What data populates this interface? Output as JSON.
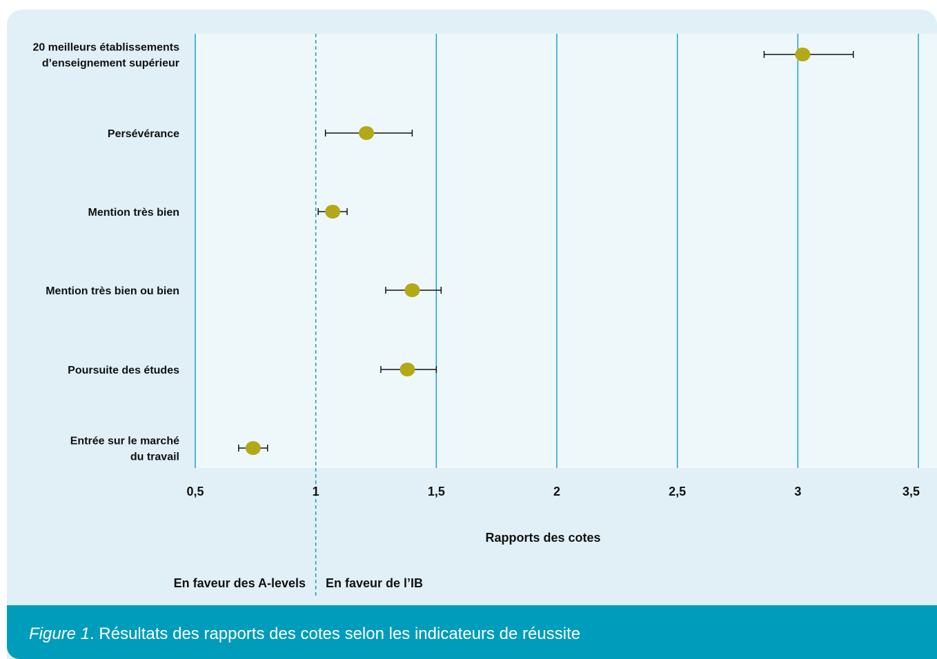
{
  "chart_data": {
    "type": "scatter",
    "subtype": "forest-plot",
    "categories": [
      [
        "20 meilleurs établissements",
        "d’enseignement supérieur"
      ],
      [
        "Persévérance"
      ],
      [
        "Mention très bien"
      ],
      [
        "Mention très bien ou bien"
      ],
      [
        "Poursuite des études"
      ],
      [
        "Entrée sur le marché",
        "du travail"
      ]
    ],
    "points": [
      {
        "value": 3.02,
        "ci_low": 2.86,
        "ci_high": 3.23
      },
      {
        "value": 1.21,
        "ci_low": 1.04,
        "ci_high": 1.4
      },
      {
        "value": 1.07,
        "ci_low": 1.01,
        "ci_high": 1.13
      },
      {
        "value": 1.4,
        "ci_low": 1.29,
        "ci_high": 1.52
      },
      {
        "value": 1.38,
        "ci_low": 1.27,
        "ci_high": 1.5
      },
      {
        "value": 0.74,
        "ci_low": 0.68,
        "ci_high": 0.8
      }
    ],
    "x_ticks": [
      "0,5",
      "1",
      "1,5",
      "2",
      "2,5",
      "3",
      "3,5"
    ],
    "x_tick_values": [
      0.5,
      1,
      1.5,
      2,
      2.5,
      3,
      3.5
    ],
    "xlim": [
      0.5,
      3.5
    ],
    "reference_line": 1,
    "xlabel": "Rapports des cotes",
    "left_annotation": "En faveur des A-levels",
    "right_annotation": "En faveur de l’IB",
    "grid": true,
    "colors": {
      "background": "#e0f0f6",
      "plot_area": "#eef7fa",
      "gridline": "#1aa3c8",
      "marker": "#b3a917",
      "caption_bar": "#009cbc"
    }
  },
  "caption": {
    "figure_label": "Figure 1",
    "text": ". Résultats des rapports des cotes selon les indicateurs de réussite"
  }
}
